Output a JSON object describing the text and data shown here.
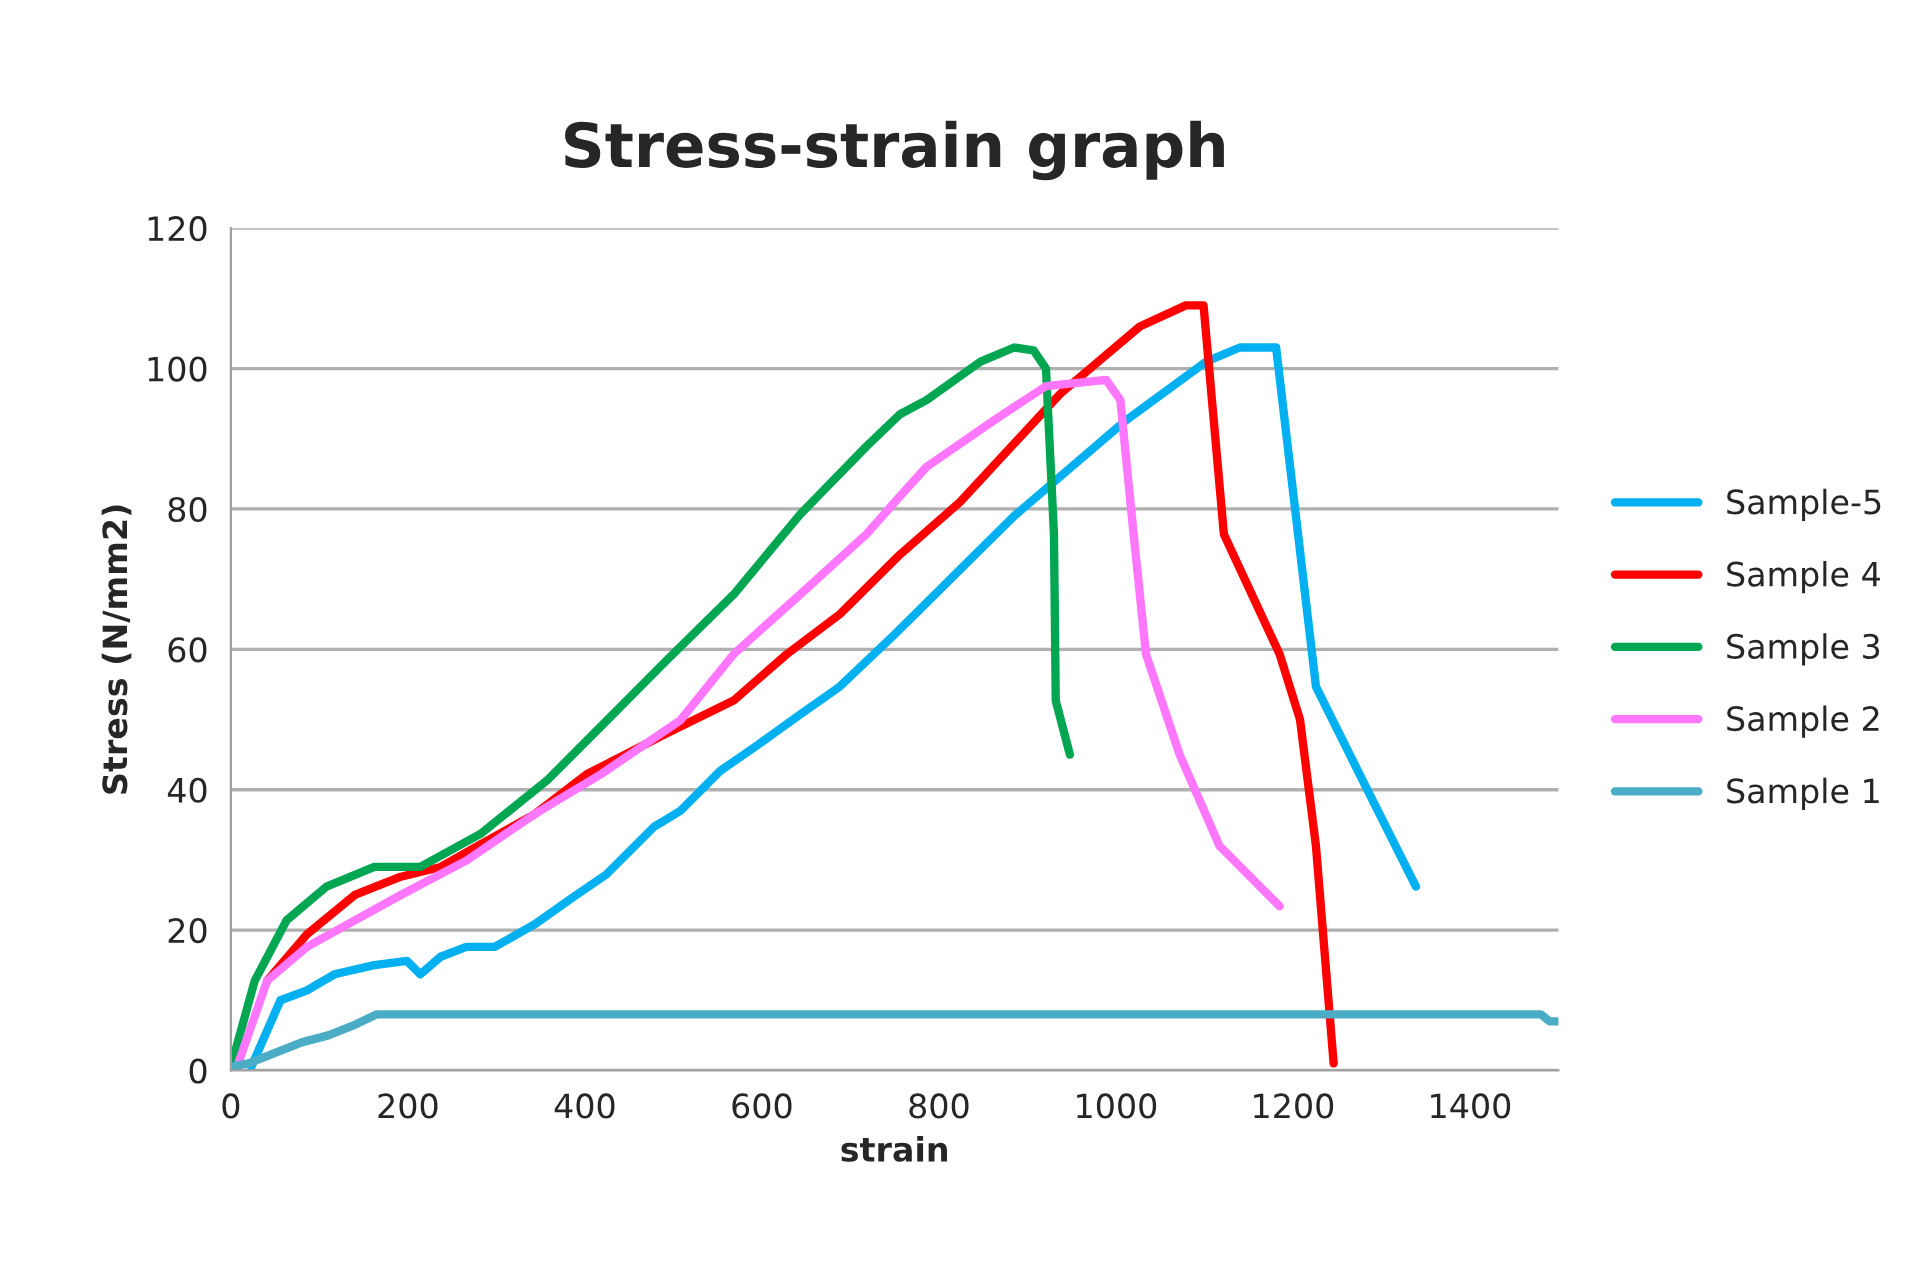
{
  "chart_data": {
    "type": "line",
    "title": "Stress-strain graph",
    "xlabel": "strain",
    "ylabel": "Stress (N/mm2)",
    "xlim": [
      0,
      1500
    ],
    "xticks": [
      0,
      200,
      400,
      600,
      800,
      1000,
      1200,
      1400
    ],
    "ylim": [
      0,
      120
    ],
    "yticks": [
      0,
      20,
      40,
      60,
      80,
      100,
      120
    ],
    "grid": "y",
    "legend": "right",
    "marker": "none",
    "line_style": "solid",
    "series": [
      {
        "name": "Sample-5",
        "color": "#00b0f0",
        "x": [
          23,
          56,
          86,
          117,
          162,
          199,
          214,
          237,
          266,
          298,
          343,
          388,
          424,
          478,
          508,
          553,
          591,
          643,
          688,
          749,
          885,
          1011,
          1102,
          1140,
          1181,
          1226,
          1282,
          1339
        ],
        "values": [
          0.5,
          10,
          11.4,
          13.7,
          15,
          15.6,
          13.7,
          16.2,
          17.6,
          17.6,
          20.8,
          24.8,
          27.9,
          34.7,
          37,
          42.7,
          46,
          50.7,
          54.7,
          62,
          79,
          92.6,
          101,
          103,
          103,
          54.7,
          40.5,
          26.2
        ]
      },
      {
        "name": "Sample 4",
        "color": "#ff0000",
        "x": [
          41,
          86,
          140,
          192,
          237,
          282,
          343,
          402,
          492,
          568,
          628,
          688,
          756,
          824,
          937,
          1027,
          1079,
          1099,
          1122,
          1185,
          1208,
          1226,
          1246
        ],
        "values": [
          12.8,
          19.4,
          25,
          27.6,
          29,
          32.2,
          36.5,
          42.2,
          48,
          52.7,
          59.3,
          65,
          73.5,
          81,
          96.4,
          106,
          109,
          109,
          76.4,
          59.3,
          50,
          32,
          1
        ]
      },
      {
        "name": "Sample 3",
        "color": "#00a651",
        "x": [
          0,
          27,
          63,
          108,
          162,
          214,
          282,
          357,
          418,
          492,
          568,
          643,
          718,
          756,
          786,
          847,
          885,
          907,
          921,
          930,
          932,
          948
        ],
        "values": [
          0.5,
          12.8,
          21.4,
          26.2,
          29,
          29,
          33.7,
          41.3,
          49,
          58.4,
          67.8,
          79.2,
          88.9,
          93.5,
          95.5,
          101,
          103,
          102.6,
          100,
          76.4,
          52.7,
          45
        ]
      },
      {
        "name": "Sample 2",
        "color": "#ff77ff",
        "x": [
          7,
          41,
          86,
          140,
          192,
          266,
          343,
          418,
          508,
          568,
          643,
          718,
          756,
          786,
          862,
          921,
          989,
          1005,
          1020,
          1034,
          1072,
          1117,
          1185
        ],
        "values": [
          0.5,
          12.8,
          17.6,
          21.4,
          25,
          29.9,
          36.5,
          42.2,
          49.9,
          59.3,
          67.8,
          76.4,
          81.8,
          86,
          92.6,
          97.5,
          98.4,
          95.5,
          76.4,
          59.3,
          45,
          32,
          23.4
        ]
      },
      {
        "name": "Sample 1",
        "color": "#4bacc6",
        "x": [
          0,
          20,
          50,
          80,
          110,
          140,
          165,
          1480,
          1490,
          1500
        ],
        "values": [
          0.5,
          1,
          2.5,
          4,
          5,
          6.5,
          8,
          8,
          7,
          7
        ]
      }
    ]
  }
}
